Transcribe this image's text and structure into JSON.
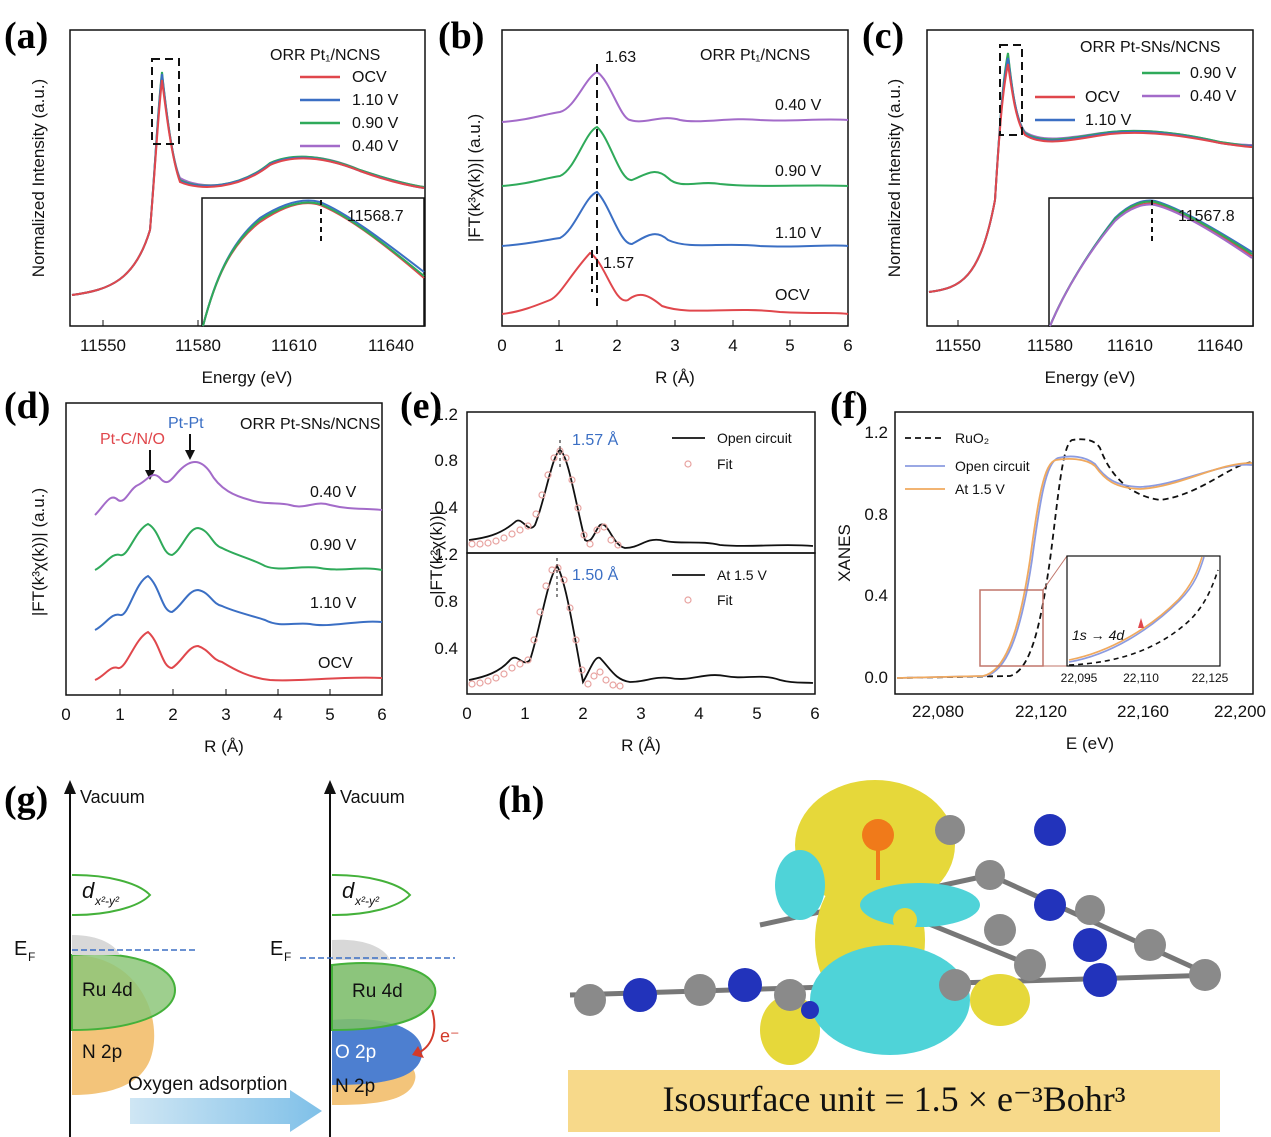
{
  "panels": {
    "a": {
      "label": "(a)",
      "legend_title": "ORR Pt₁/NCNS",
      "legend": [
        "OCV",
        "1.10 V",
        "0.90 V",
        "0.40 V"
      ],
      "ylabel": "Normalized Intensity (a.u.)",
      "xlabel": "Energy (eV)",
      "xticks": [
        "11550",
        "11580",
        "11610",
        "11640"
      ],
      "inset_peak": "11568.7"
    },
    "b": {
      "label": "(b)",
      "title": "ORR Pt₁/NCNS",
      "ylabel": "|FT(k³χ(k))| (a.u.)",
      "xlabel": "R (Å)",
      "xticks": [
        "0",
        "1",
        "2",
        "3",
        "4",
        "5",
        "6"
      ],
      "traces": [
        "0.40 V",
        "0.90 V",
        "1.10 V",
        "OCV"
      ],
      "peak_top": "1.63",
      "peak_bottom": "1.57"
    },
    "c": {
      "label": "(c)",
      "legend_title": "ORR Pt-SNs/NCNS",
      "legend": [
        "0.90 V",
        "OCV",
        "0.40 V",
        "1.10 V"
      ],
      "ylabel": "Normalized Intensity (a.u.)",
      "xlabel": "Energy (eV)",
      "xticks": [
        "11550",
        "11580",
        "11610",
        "11640"
      ],
      "inset_peak": "11567.8"
    },
    "d": {
      "label": "(d)",
      "title": "ORR Pt-SNs/NCNS",
      "ann_red": "Pt-C/N/O",
      "ann_blue": "Pt-Pt",
      "ylabel": "|FT(k³χ(k))| (a.u.)",
      "xlabel": "R (Å)",
      "xticks": [
        "0",
        "1",
        "2",
        "3",
        "4",
        "5",
        "6"
      ],
      "traces": [
        "0.40 V",
        "0.90 V",
        "1.10 V",
        "OCV"
      ]
    },
    "e": {
      "label": "(e)",
      "ylabel": "|FT(k²χ(k))|",
      "xlabel": "R (Å)",
      "xticks": [
        "0",
        "1",
        "2",
        "3",
        "4",
        "5",
        "6"
      ],
      "yticks_top": [
        "0.4",
        "0.8",
        "1.2"
      ],
      "yticks_bottom": [
        "0.4",
        "0.8",
        "1.2"
      ],
      "top_peak": "1.57 Å",
      "bottom_peak": "1.50 Å",
      "legend_top": [
        "Open circuit",
        "Fit"
      ],
      "legend_bottom": [
        "At 1.5 V",
        "Fit"
      ]
    },
    "f": {
      "label": "(f)",
      "ylabel": "XANES",
      "xlabel": "E (eV)",
      "xticks": [
        "22,080",
        "22,120",
        "22,160",
        "22,200"
      ],
      "yticks": [
        "0.0",
        "0.4",
        "0.8",
        "1.2"
      ],
      "legend": [
        "RuO₂",
        "Open circuit",
        "At 1.5 V"
      ],
      "inset_xticks": [
        "22,095",
        "22,110",
        "22,125"
      ],
      "inset_ann": "1s → 4d"
    },
    "g": {
      "label": "(g)",
      "vacuum": "Vacuum",
      "ef": "E",
      "ef_sub": "F",
      "dx": "d",
      "dx_sub": "x²-y²",
      "ru": "Ru 4d",
      "n2p": "N 2p",
      "o2p": "O 2p",
      "electron": "e⁻",
      "arrow": "Oxygen adsorption"
    },
    "h": {
      "label": "(h)",
      "banner": "Isosurface unit = 1.5  × e⁻³Bohr³"
    }
  },
  "colors": {
    "ocv": "#e0474c",
    "v110": "#3b6fc4",
    "v090": "#2faa5a",
    "v040": "#a36bc9",
    "fit": "#e8a3a0",
    "open": "#8c9be0",
    "at15": "#f0a95e",
    "yellow": "#e6d83a",
    "cyan": "#4fd3d8",
    "nblue": "#2233bb",
    "grey": "#8a8a8a",
    "orange": "#f07a1a"
  },
  "chart_data": [
    {
      "panel": "a",
      "type": "line",
      "xlabel": "Energy (eV)",
      "ylabel": "Normalized Intensity (a.u.)",
      "xlim": [
        11540,
        11650
      ],
      "series": [
        {
          "name": "OCV",
          "x": [
            11540,
            11560,
            11565,
            11568.7,
            11572,
            11580,
            11600,
            11620,
            11640,
            11650
          ],
          "y": [
            0.05,
            0.2,
            0.6,
            1.32,
            0.8,
            0.55,
            0.62,
            0.68,
            0.6,
            0.55
          ]
        },
        {
          "name": "1.10 V",
          "x": [
            11540,
            11560,
            11565,
            11568.7,
            11572,
            11580,
            11600,
            11620,
            11640,
            11650
          ],
          "y": [
            0.05,
            0.2,
            0.6,
            1.38,
            0.8,
            0.55,
            0.62,
            0.68,
            0.6,
            0.55
          ]
        },
        {
          "name": "0.90 V",
          "x": [
            11540,
            11560,
            11565,
            11568.7,
            11572,
            11580,
            11600,
            11620,
            11640,
            11650
          ],
          "y": [
            0.05,
            0.2,
            0.6,
            1.4,
            0.8,
            0.55,
            0.62,
            0.68,
            0.6,
            0.55
          ]
        },
        {
          "name": "0.40 V",
          "x": [
            11540,
            11560,
            11565,
            11568.7,
            11572,
            11580,
            11600,
            11620,
            11640,
            11650
          ],
          "y": [
            0.05,
            0.2,
            0.6,
            1.36,
            0.8,
            0.55,
            0.62,
            0.68,
            0.6,
            0.55
          ]
        }
      ]
    },
    {
      "panel": "b",
      "type": "line",
      "xlabel": "R (Å)",
      "ylabel": "|FT(k³χ(k))| (a.u.)",
      "xlim": [
        0,
        6
      ],
      "series": [
        {
          "name": "0.40 V",
          "peak_R": 1.63
        },
        {
          "name": "0.90 V",
          "peak_R": 1.63
        },
        {
          "name": "1.10 V",
          "peak_R": 1.63
        },
        {
          "name": "OCV",
          "peak_R": 1.57
        }
      ]
    },
    {
      "panel": "c",
      "type": "line",
      "xlabel": "Energy (eV)",
      "ylabel": "Normalized Intensity (a.u.)",
      "xlim": [
        11540,
        11650
      ],
      "series": [
        {
          "name": "OCV"
        },
        {
          "name": "1.10 V"
        },
        {
          "name": "0.90 V"
        },
        {
          "name": "0.40 V"
        }
      ]
    },
    {
      "panel": "d",
      "type": "line",
      "xlabel": "R (Å)",
      "xlim": [
        0,
        6
      ],
      "series": [
        {
          "name": "0.40 V"
        },
        {
          "name": "0.90 V"
        },
        {
          "name": "1.10 V"
        },
        {
          "name": "OCV"
        }
      ]
    },
    {
      "panel": "e",
      "type": "line",
      "xlabel": "R (Å)",
      "xlim": [
        0,
        6
      ],
      "series": [
        {
          "name": "Open circuit",
          "peak_R": 1.57,
          "peak_y": 0.88
        },
        {
          "name": "At 1.5 V",
          "peak_R": 1.5,
          "peak_y": 1.1
        }
      ]
    },
    {
      "panel": "f",
      "type": "line",
      "xlabel": "E (eV)",
      "ylabel": "XANES",
      "xlim": [
        22060,
        22200
      ],
      "ylim": [
        -0.05,
        1.3
      ],
      "series": [
        {
          "name": "RuO₂",
          "x": [
            22060,
            22100,
            22110,
            22120,
            22130,
            22140,
            22150,
            22160,
            22180,
            22200
          ],
          "y": [
            0,
            0.02,
            0.2,
            0.85,
            1.15,
            1.13,
            1.0,
            0.93,
            0.98,
            1.03
          ]
        },
        {
          "name": "Open circuit",
          "x": [
            22060,
            22090,
            22100,
            22110,
            22120,
            22130,
            22140,
            22150,
            22160,
            22180,
            22200
          ],
          "y": [
            0,
            0.02,
            0.08,
            0.35,
            0.85,
            1.07,
            1.05,
            1.0,
            0.96,
            1.0,
            1.03
          ]
        },
        {
          "name": "At 1.5 V",
          "x": [
            22060,
            22090,
            22100,
            22110,
            22120,
            22130,
            22140,
            22150,
            22160,
            22180,
            22200
          ],
          "y": [
            0,
            0.02,
            0.09,
            0.38,
            0.87,
            1.06,
            1.05,
            1.0,
            0.96,
            1.0,
            1.03
          ]
        }
      ]
    }
  ]
}
